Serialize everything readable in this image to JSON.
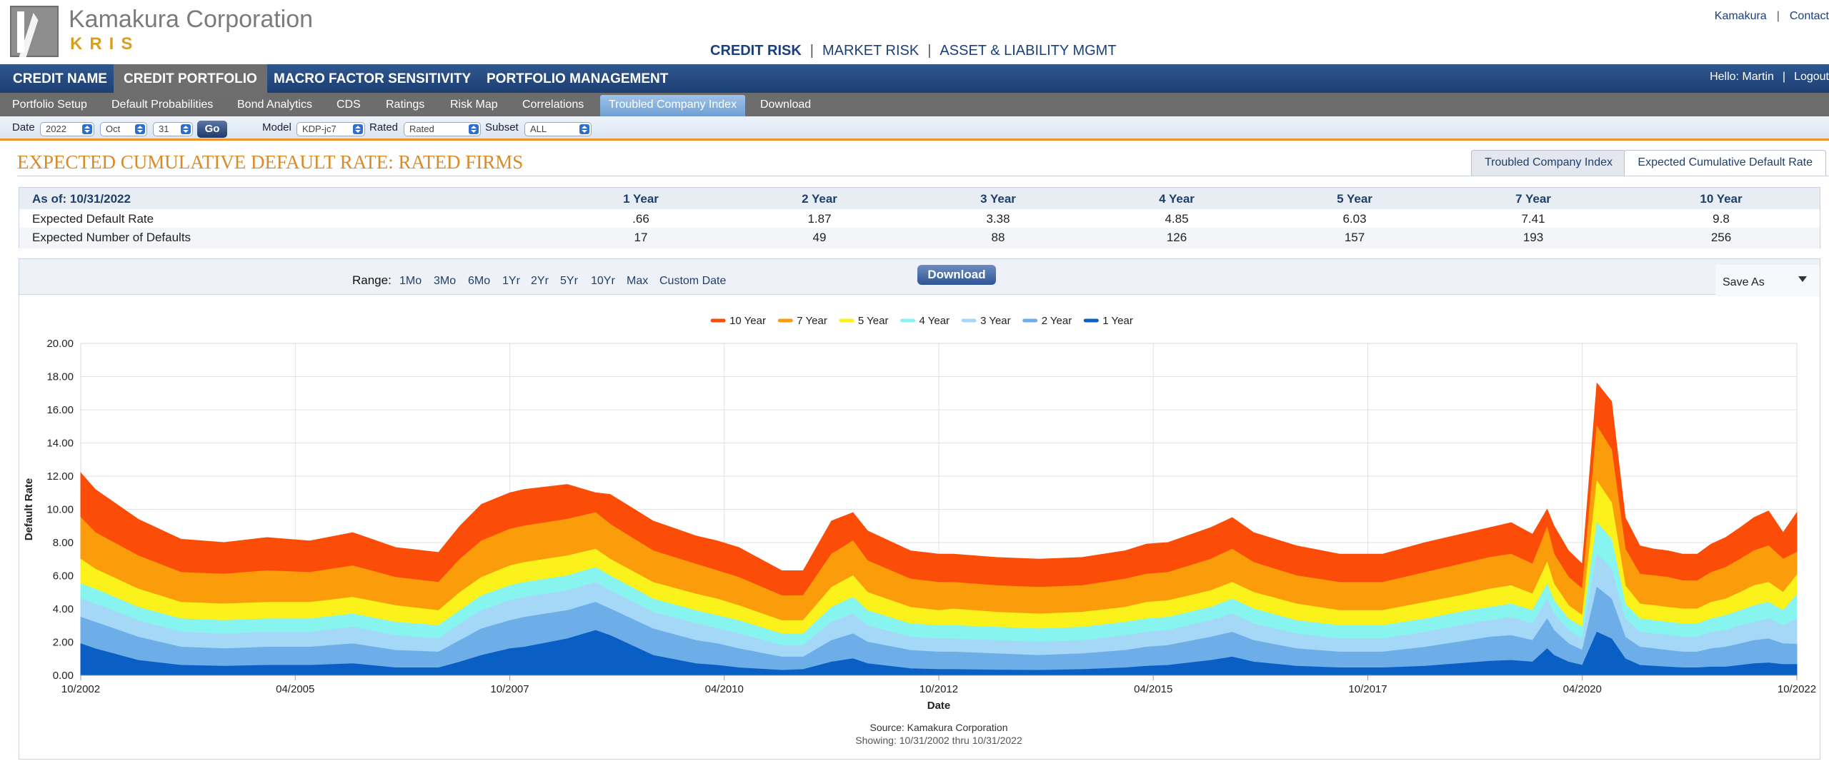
{
  "header": {
    "logo_name": "Kamakura Corporation",
    "logo_sub": "KRIS",
    "top_links": [
      "Kamakura",
      "Contact"
    ],
    "products": [
      {
        "label": "CREDIT RISK",
        "active": true
      },
      {
        "label": "MARKET RISK",
        "active": false
      },
      {
        "label": "ASSET & LIABILITY MGMT",
        "active": false
      }
    ]
  },
  "main_nav": {
    "items": [
      "CREDIT NAME",
      "CREDIT PORTFOLIO",
      "MACRO FACTOR SENSITIVITY",
      "PORTFOLIO MANAGEMENT"
    ],
    "active_index": 1,
    "greeting": "Hello: Martin",
    "logout": "Logout"
  },
  "sub_nav": {
    "items": [
      "Portfolio Setup",
      "Default Probabilities",
      "Bond Analytics",
      "CDS",
      "Ratings",
      "Risk Map",
      "Correlations",
      "Troubled Company Index",
      "Download"
    ],
    "active_index": 7
  },
  "filters": {
    "date_label": "Date",
    "year": "2022",
    "month": "Oct",
    "day": "31",
    "go": "Go",
    "model_label": "Model",
    "model": "KDP-jc7",
    "rated_label": "Rated",
    "rated": "Rated",
    "subset_label": "Subset",
    "subset": "ALL"
  },
  "page": {
    "title": "EXPECTED CUMULATIVE DEFAULT RATE: RATED FIRMS",
    "view_tabs": [
      "Troubled Company Index",
      "Expected Cumulative Default Rate"
    ],
    "active_tab": 1
  },
  "summary": {
    "as_of": "As of: 10/31/2022",
    "horizons": [
      "1 Year",
      "2 Year",
      "3 Year",
      "4 Year",
      "5 Year",
      "7 Year",
      "10 Year"
    ],
    "rows": [
      {
        "label": "Expected Default Rate",
        "values": [
          ".66",
          "1.87",
          "3.38",
          "4.85",
          "6.03",
          "7.41",
          "9.8"
        ]
      },
      {
        "label": "Expected Number of Defaults",
        "values": [
          "17",
          "49",
          "88",
          "126",
          "157",
          "193",
          "256"
        ]
      }
    ]
  },
  "toolbar": {
    "range_label": "Range:",
    "ranges": [
      "1Mo",
      "3Mo",
      "6Mo",
      "1Yr",
      "2Yr",
      "5Yr",
      "10Yr",
      "Max",
      "Custom Date"
    ],
    "download": "Download",
    "save_as": "Save As"
  },
  "chart_data": {
    "type": "area",
    "xlabel": "Date",
    "ylabel": "Default Rate",
    "ylim": [
      0,
      20
    ],
    "yticks": [
      "0.00",
      "2.00",
      "4.00",
      "6.00",
      "8.00",
      "10.00",
      "12.00",
      "14.00",
      "16.00",
      "18.00",
      "20.00"
    ],
    "xticks": [
      "10/2002",
      "04/2005",
      "10/2007",
      "04/2010",
      "10/2012",
      "04/2015",
      "10/2017",
      "04/2020",
      "10/2022"
    ],
    "xrange": [
      "2002-10",
      "2022-10"
    ],
    "legend": "top-center",
    "grid": true,
    "source": "Source: Kamakura Corporation",
    "showing": "Showing: 10/31/2002 thru 10/31/2022",
    "x": [
      2002.83,
      2003.0,
      2003.5,
      2004.0,
      2004.5,
      2005.0,
      2005.5,
      2006.0,
      2006.5,
      2007.0,
      2007.25,
      2007.5,
      2007.83,
      2008.0,
      2008.5,
      2008.83,
      2009.0,
      2009.5,
      2010.0,
      2010.25,
      2010.5,
      2011.0,
      2011.25,
      2011.58,
      2011.83,
      2012.0,
      2012.5,
      2012.83,
      2013.0,
      2013.5,
      2014.0,
      2014.5,
      2015.0,
      2015.25,
      2015.5,
      2016.0,
      2016.25,
      2016.5,
      2017.0,
      2017.5,
      2018.0,
      2018.5,
      2019.0,
      2019.25,
      2019.5,
      2019.75,
      2019.92,
      2020.0,
      2020.17,
      2020.33,
      2020.5,
      2020.67,
      2020.83,
      2021.0,
      2021.17,
      2021.33,
      2021.5,
      2021.67,
      2021.83,
      2022.0,
      2022.17,
      2022.33,
      2022.5,
      2022.67,
      2022.83
    ],
    "series": [
      {
        "name": "1 Year",
        "color": "#0a5fc4",
        "values": [
          1.9,
          1.6,
          0.9,
          0.6,
          0.55,
          0.6,
          0.6,
          0.7,
          0.45,
          0.45,
          0.8,
          1.2,
          1.6,
          1.7,
          2.2,
          2.7,
          2.4,
          1.2,
          0.7,
          0.6,
          0.45,
          0.3,
          0.35,
          0.8,
          1.0,
          0.7,
          0.4,
          0.35,
          0.35,
          0.32,
          0.3,
          0.35,
          0.45,
          0.55,
          0.6,
          0.9,
          1.1,
          0.8,
          0.55,
          0.45,
          0.45,
          0.55,
          0.75,
          0.85,
          0.9,
          0.8,
          1.6,
          1.2,
          0.8,
          0.6,
          2.6,
          2.2,
          1.0,
          0.6,
          0.55,
          0.5,
          0.45,
          0.45,
          0.5,
          0.5,
          0.6,
          0.7,
          0.75,
          0.65,
          0.66
        ]
      },
      {
        "name": "2 Year",
        "color": "#6eaee8",
        "values": [
          3.5,
          3.2,
          2.3,
          1.7,
          1.6,
          1.7,
          1.7,
          1.9,
          1.5,
          1.4,
          2.1,
          2.8,
          3.3,
          3.5,
          3.9,
          4.4,
          4.0,
          2.8,
          2.1,
          1.9,
          1.6,
          1.1,
          1.1,
          2.1,
          2.5,
          2.0,
          1.5,
          1.4,
          1.4,
          1.3,
          1.2,
          1.3,
          1.5,
          1.7,
          1.8,
          2.3,
          2.6,
          2.1,
          1.6,
          1.4,
          1.4,
          1.7,
          2.1,
          2.3,
          2.4,
          2.1,
          3.4,
          2.7,
          1.9,
          1.5,
          5.3,
          4.6,
          2.3,
          1.7,
          1.6,
          1.5,
          1.4,
          1.4,
          1.6,
          1.7,
          1.9,
          2.1,
          2.2,
          1.9,
          1.87
        ]
      },
      {
        "name": "3 Year",
        "color": "#a5d8f6",
        "values": [
          4.6,
          4.3,
          3.3,
          2.6,
          2.5,
          2.6,
          2.6,
          2.9,
          2.4,
          2.2,
          3.1,
          3.9,
          4.5,
          4.7,
          5.1,
          5.6,
          5.1,
          3.8,
          3.1,
          2.8,
          2.5,
          1.8,
          1.8,
          3.2,
          3.7,
          3.0,
          2.3,
          2.2,
          2.2,
          2.1,
          2.0,
          2.1,
          2.4,
          2.6,
          2.7,
          3.3,
          3.7,
          3.1,
          2.5,
          2.2,
          2.2,
          2.6,
          3.1,
          3.3,
          3.5,
          3.1,
          4.6,
          3.7,
          2.7,
          2.2,
          7.3,
          6.4,
          3.4,
          2.6,
          2.5,
          2.4,
          2.3,
          2.3,
          2.6,
          2.7,
          3.0,
          3.2,
          3.4,
          3.0,
          3.38
        ]
      },
      {
        "name": "4 Year",
        "color": "#88f4f0",
        "values": [
          5.5,
          5.2,
          4.1,
          3.4,
          3.3,
          3.4,
          3.4,
          3.7,
          3.2,
          3.0,
          3.9,
          4.8,
          5.4,
          5.6,
          6.0,
          6.5,
          6.0,
          4.6,
          3.9,
          3.6,
          3.3,
          2.5,
          2.5,
          4.1,
          4.7,
          3.9,
          3.1,
          3.0,
          3.0,
          2.9,
          2.8,
          2.9,
          3.2,
          3.4,
          3.5,
          4.1,
          4.6,
          4.0,
          3.3,
          3.0,
          3.0,
          3.4,
          3.9,
          4.1,
          4.3,
          3.9,
          5.5,
          4.5,
          3.4,
          2.9,
          9.2,
          8.2,
          4.3,
          3.4,
          3.3,
          3.2,
          3.1,
          3.1,
          3.4,
          3.6,
          3.9,
          4.2,
          4.4,
          3.9,
          4.85
        ]
      },
      {
        "name": "5 Year",
        "color": "#fbf21b",
        "values": [
          7.0,
          6.4,
          5.2,
          4.4,
          4.3,
          4.4,
          4.4,
          4.7,
          4.2,
          3.9,
          5.0,
          5.9,
          6.6,
          6.8,
          7.2,
          7.6,
          7.0,
          5.6,
          4.9,
          4.6,
          4.2,
          3.3,
          3.3,
          5.3,
          6.0,
          5.0,
          4.1,
          3.9,
          4.0,
          3.8,
          3.7,
          3.8,
          4.1,
          4.4,
          4.5,
          5.1,
          5.6,
          5.0,
          4.3,
          3.9,
          3.9,
          4.4,
          4.9,
          5.2,
          5.4,
          4.9,
          6.8,
          5.5,
          4.2,
          3.6,
          11.7,
          10.4,
          5.4,
          4.3,
          4.2,
          4.1,
          4.0,
          4.0,
          4.4,
          4.6,
          5.0,
          5.4,
          5.6,
          5.0,
          6.03
        ]
      },
      {
        "name": "7 Year",
        "color": "#fb9d0a",
        "values": [
          9.5,
          8.6,
          7.2,
          6.2,
          6.1,
          6.3,
          6.2,
          6.6,
          5.9,
          5.6,
          7.0,
          8.1,
          8.8,
          9.0,
          9.4,
          9.8,
          9.1,
          7.5,
          6.7,
          6.3,
          5.9,
          4.8,
          4.8,
          7.3,
          8.1,
          6.9,
          5.8,
          5.6,
          5.6,
          5.4,
          5.3,
          5.4,
          5.8,
          6.1,
          6.2,
          7.0,
          7.6,
          6.8,
          6.0,
          5.6,
          5.6,
          6.2,
          6.8,
          7.1,
          7.3,
          6.7,
          8.9,
          7.3,
          5.9,
          5.2,
          15.0,
          13.6,
          7.6,
          6.1,
          6.0,
          5.9,
          5.7,
          5.7,
          6.2,
          6.5,
          7.0,
          7.5,
          7.8,
          7.0,
          7.41
        ]
      },
      {
        "name": "10 Year",
        "color": "#fb4d07",
        "values": [
          12.2,
          11.2,
          9.4,
          8.2,
          8.0,
          8.3,
          8.1,
          8.6,
          7.7,
          7.4,
          9.0,
          10.3,
          11.0,
          11.2,
          11.5,
          11.0,
          10.9,
          9.3,
          8.4,
          8.1,
          7.7,
          6.3,
          6.3,
          9.3,
          9.8,
          8.7,
          7.5,
          7.3,
          7.3,
          7.1,
          7.0,
          7.1,
          7.5,
          7.9,
          8.0,
          8.9,
          9.5,
          8.6,
          7.8,
          7.3,
          7.3,
          8.0,
          8.6,
          8.9,
          9.2,
          8.5,
          10.0,
          9.0,
          7.5,
          6.7,
          17.6,
          16.5,
          9.5,
          7.8,
          7.6,
          7.5,
          7.3,
          7.3,
          7.9,
          8.3,
          8.9,
          9.5,
          9.9,
          8.6,
          9.8
        ]
      }
    ]
  }
}
